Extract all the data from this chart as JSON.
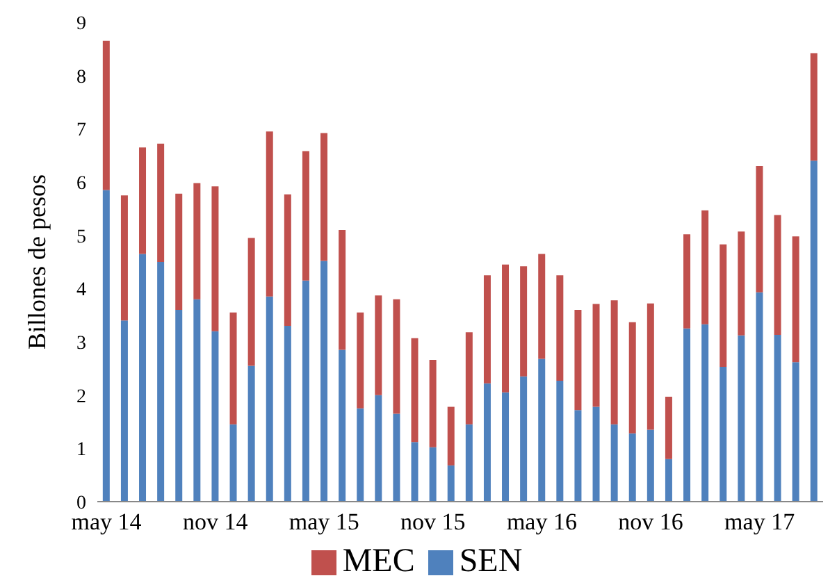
{
  "chart_data": {
    "type": "bar",
    "stacked": true,
    "ylabel": "Billones de pesos",
    "categories": [
      "may 14",
      null,
      null,
      null,
      null,
      null,
      "nov 14",
      null,
      null,
      null,
      null,
      null,
      "may 15",
      null,
      null,
      null,
      null,
      null,
      "nov 15",
      null,
      null,
      null,
      null,
      null,
      "may 16",
      null,
      null,
      null,
      null,
      null,
      "nov 16",
      null,
      null,
      null,
      null,
      null,
      "may 17",
      null,
      null,
      null
    ],
    "series": [
      {
        "name": "SEN",
        "color": "#4f81bd",
        "values": [
          5.85,
          3.4,
          4.65,
          4.5,
          3.6,
          3.8,
          3.2,
          1.45,
          2.55,
          3.85,
          3.3,
          4.15,
          4.52,
          2.85,
          1.75,
          2.0,
          1.65,
          1.12,
          1.02,
          0.68,
          1.45,
          2.22,
          2.05,
          2.35,
          2.68,
          2.27,
          1.72,
          1.78,
          1.45,
          1.28,
          1.35,
          0.8,
          3.25,
          3.33,
          2.53,
          3.12,
          3.93,
          3.13,
          2.62,
          6.4
        ]
      },
      {
        "name": "MEC",
        "color": "#c0504d",
        "values": [
          2.8,
          2.35,
          2.0,
          2.22,
          2.18,
          2.18,
          2.72,
          2.1,
          2.4,
          3.1,
          2.47,
          2.43,
          2.4,
          2.25,
          1.8,
          1.87,
          2.15,
          1.95,
          1.64,
          1.1,
          1.73,
          2.03,
          2.4,
          2.07,
          1.97,
          1.98,
          1.88,
          1.93,
          2.33,
          2.09,
          2.37,
          1.17,
          1.77,
          2.14,
          2.3,
          1.95,
          2.37,
          2.25,
          2.36,
          2.02
        ]
      }
    ],
    "ylim": [
      0,
      9
    ],
    "yticks": [
      0,
      1,
      2,
      3,
      4,
      5,
      6,
      7,
      8,
      9
    ],
    "grid": false,
    "legend": "bottom"
  }
}
